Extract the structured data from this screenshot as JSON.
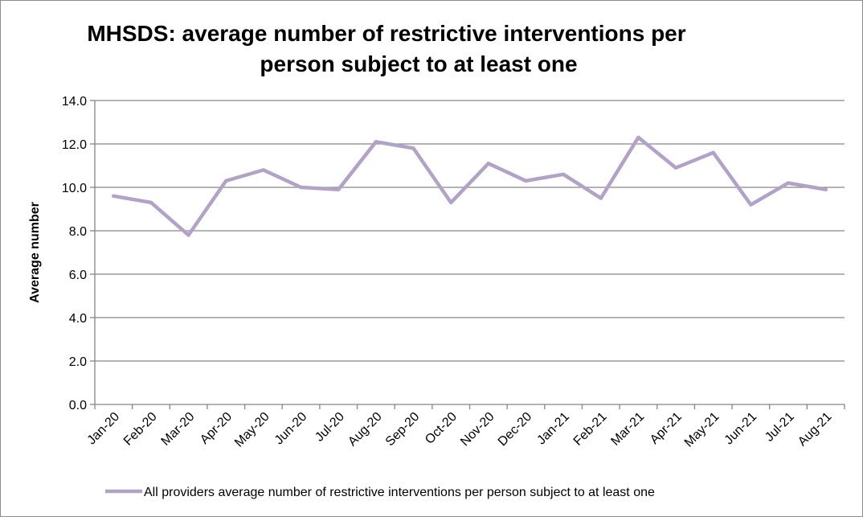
{
  "chart_data": {
    "type": "line",
    "title_lines": [
      "MHSDS: average number of restrictive interventions per",
      "person subject to at least one"
    ],
    "xlabel": "",
    "ylabel": "Average number",
    "ylim": [
      0,
      14
    ],
    "yticks": [
      "0.0",
      "2.0",
      "4.0",
      "6.0",
      "8.0",
      "10.0",
      "12.0",
      "14.0"
    ],
    "grid": true,
    "legend_position": "bottom",
    "categories": [
      "Jan-20",
      "Feb-20",
      "Mar-20",
      "Apr-20",
      "May-20",
      "Jun-20",
      "Jul-20",
      "Aug-20",
      "Sep-20",
      "Oct-20",
      "Nov-20",
      "Dec-20",
      "Jan-21",
      "Feb-21",
      "Mar-21",
      "Apr-21",
      "May-21",
      "Jun-21",
      "Jul-21",
      "Aug-21"
    ],
    "series": [
      {
        "name": "All providers average number of restrictive interventions per person subject to at least one",
        "color": "#b3a2c7",
        "values": [
          9.6,
          9.3,
          7.8,
          10.3,
          10.8,
          10.0,
          9.9,
          12.1,
          11.8,
          9.3,
          11.1,
          10.3,
          10.6,
          9.5,
          12.3,
          10.9,
          11.6,
          9.2,
          10.2,
          9.9
        ]
      }
    ]
  }
}
